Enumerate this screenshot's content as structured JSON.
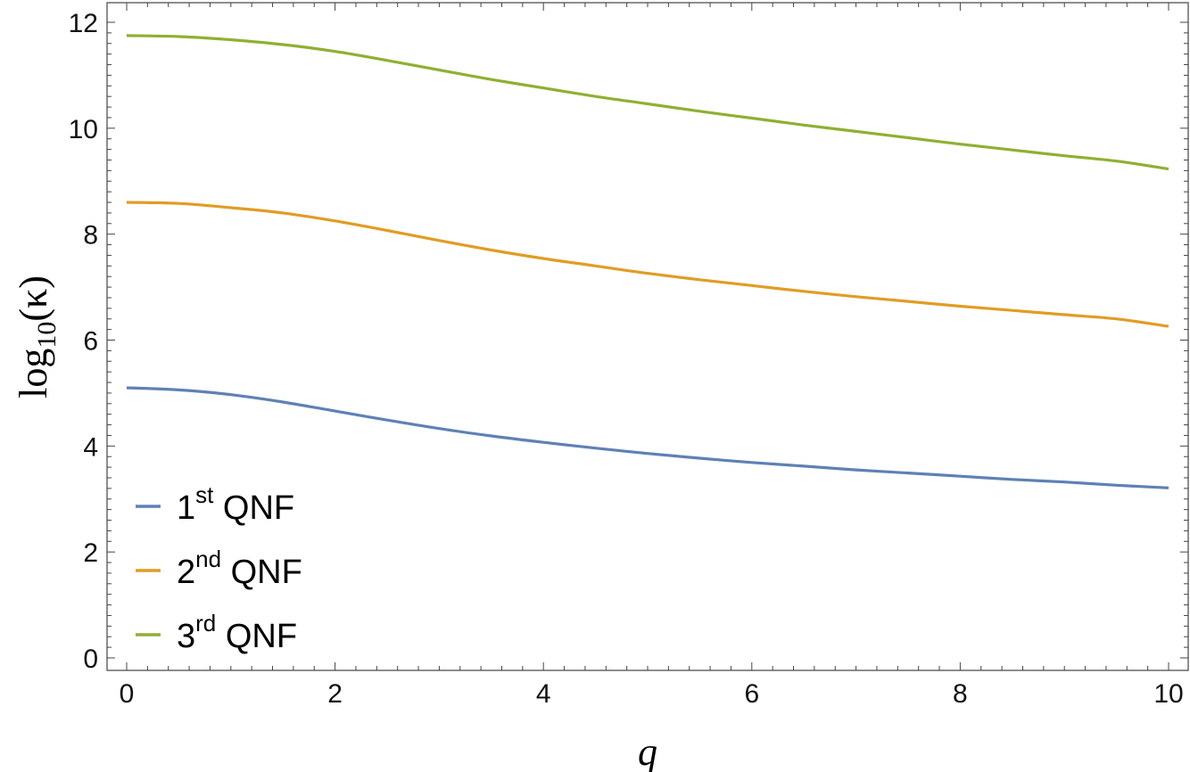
{
  "chart_data": {
    "type": "line",
    "xlabel": "q",
    "ylabel_base": "log",
    "ylabel_sub": "10",
    "ylabel_arg": "(κ)",
    "xlim": [
      0,
      10
    ],
    "ylim": [
      0,
      12
    ],
    "x_ticks": [
      0,
      2,
      4,
      6,
      8,
      10
    ],
    "y_ticks": [
      0,
      2,
      4,
      6,
      8,
      10,
      12
    ],
    "x_tick_labels": [
      "0",
      "2",
      "4",
      "6",
      "8",
      "10"
    ],
    "y_tick_labels": [
      "0",
      "2",
      "4",
      "6",
      "8",
      "10",
      "12"
    ],
    "grid": false,
    "legend_position": "bottom-left",
    "x": [
      0,
      0.5,
      1,
      1.5,
      2,
      2.5,
      3,
      3.5,
      4,
      4.5,
      5,
      5.5,
      6,
      6.5,
      7,
      7.5,
      8,
      8.5,
      9,
      9.5,
      10
    ],
    "series": [
      {
        "num": "1",
        "sup": "st",
        "rest": "QNF",
        "color": "#5e81b5",
        "values": [
          5.1,
          5.06,
          4.97,
          4.83,
          4.66,
          4.49,
          4.33,
          4.19,
          4.07,
          3.96,
          3.86,
          3.77,
          3.69,
          3.62,
          3.55,
          3.49,
          3.43,
          3.37,
          3.32,
          3.26,
          3.21
        ]
      },
      {
        "num": "2",
        "sup": "nd",
        "rest": "QNF",
        "color": "#e19c24",
        "values": [
          8.6,
          8.58,
          8.5,
          8.4,
          8.25,
          8.07,
          7.88,
          7.7,
          7.54,
          7.4,
          7.26,
          7.14,
          7.03,
          6.92,
          6.82,
          6.73,
          6.64,
          6.56,
          6.48,
          6.4,
          6.26
        ]
      },
      {
        "num": "3",
        "sup": "rd",
        "rest": "QNF",
        "color": "#8fb032",
        "values": [
          11.75,
          11.73,
          11.67,
          11.58,
          11.45,
          11.28,
          11.1,
          10.92,
          10.76,
          10.6,
          10.46,
          10.32,
          10.19,
          10.06,
          9.94,
          9.82,
          9.7,
          9.59,
          9.48,
          9.38,
          9.23
        ]
      }
    ]
  }
}
